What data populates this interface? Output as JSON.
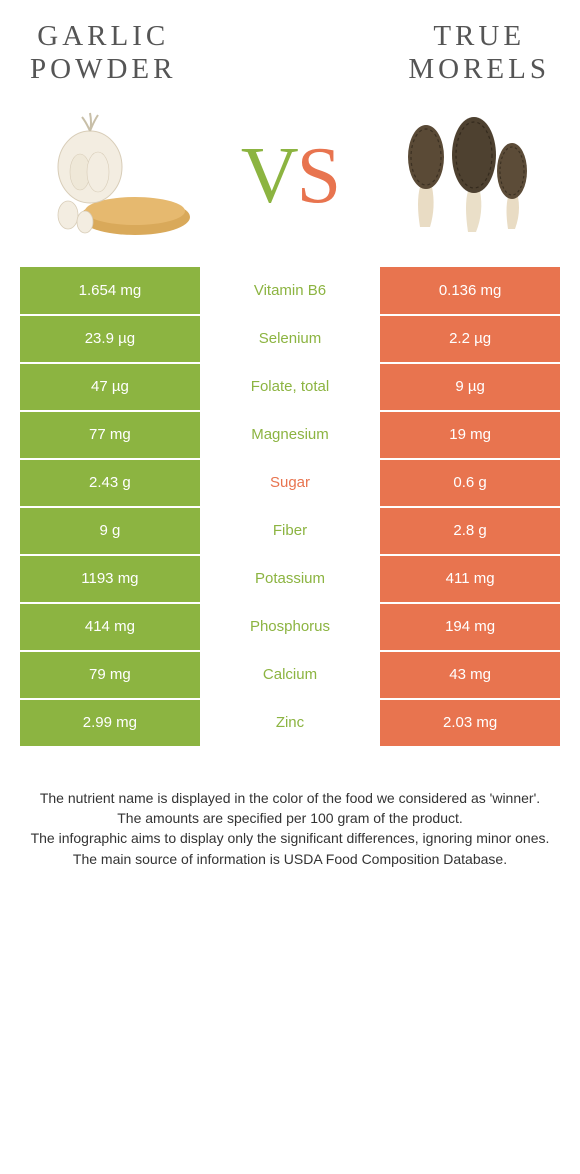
{
  "header": {
    "left_title_l1": "GARLIC",
    "left_title_l2": "POWDER",
    "right_title_l1": "TRUE",
    "right_title_l2": "MORELS",
    "vs_v": "V",
    "vs_s": "S"
  },
  "colors": {
    "left": "#8cb441",
    "right": "#e8744f",
    "sugar_label": "#e8744f",
    "nutrient_default": "#8cb441"
  },
  "rows": [
    {
      "left": "1.654 mg",
      "nutrient": "Vitamin B6",
      "right": "0.136 mg",
      "label_color": "#8cb441"
    },
    {
      "left": "23.9 µg",
      "nutrient": "Selenium",
      "right": "2.2 µg",
      "label_color": "#8cb441"
    },
    {
      "left": "47 µg",
      "nutrient": "Folate, total",
      "right": "9 µg",
      "label_color": "#8cb441"
    },
    {
      "left": "77 mg",
      "nutrient": "Magnesium",
      "right": "19 mg",
      "label_color": "#8cb441"
    },
    {
      "left": "2.43 g",
      "nutrient": "Sugar",
      "right": "0.6 g",
      "label_color": "#e8744f"
    },
    {
      "left": "9 g",
      "nutrient": "Fiber",
      "right": "2.8 g",
      "label_color": "#8cb441"
    },
    {
      "left": "1193 mg",
      "nutrient": "Potassium",
      "right": "411 mg",
      "label_color": "#8cb441"
    },
    {
      "left": "414 mg",
      "nutrient": "Phosphorus",
      "right": "194 mg",
      "label_color": "#8cb441"
    },
    {
      "left": "79 mg",
      "nutrient": "Calcium",
      "right": "43 mg",
      "label_color": "#8cb441"
    },
    {
      "left": "2.99 mg",
      "nutrient": "Zinc",
      "right": "2.03 mg",
      "label_color": "#8cb441"
    }
  ],
  "footer": {
    "line1": "The nutrient name is displayed in the color of the food we considered as 'winner'.",
    "line2": "The amounts are specified per 100 gram of the product.",
    "line3": "The infographic aims to display only the significant differences, ignoring minor ones.",
    "line4": "The main source of information is USDA Food Composition Database."
  }
}
